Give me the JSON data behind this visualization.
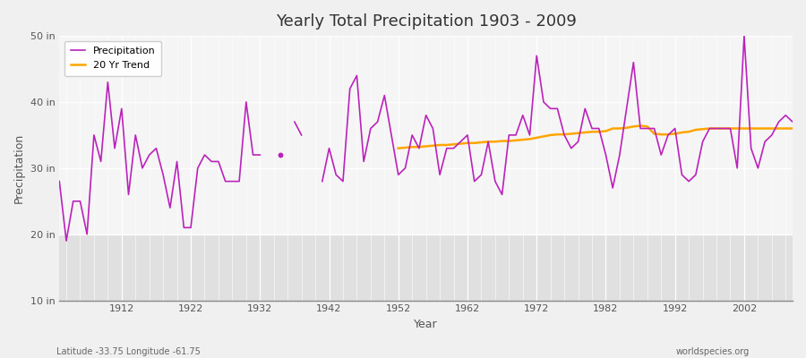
{
  "title": "Yearly Total Precipitation 1903 - 2009",
  "xlabel": "Year",
  "ylabel": "Precipitation",
  "background_color": "#f0f0f0",
  "plot_bg_color": "#e8e8e8",
  "plot_bg_top": "#f0f0f0",
  "precip_color": "#bb22bb",
  "trend_color": "#ffa500",
  "ylim": [
    10,
    50
  ],
  "yticks": [
    10,
    20,
    30,
    40,
    50
  ],
  "ytick_labels": [
    "10 in",
    "20 in",
    "30 in",
    "40 in",
    "50 in"
  ],
  "years": [
    1903,
    1904,
    1905,
    1906,
    1907,
    1908,
    1909,
    1910,
    1911,
    1912,
    1913,
    1914,
    1915,
    1916,
    1917,
    1918,
    1919,
    1920,
    1921,
    1922,
    1923,
    1924,
    1925,
    1926,
    1927,
    1928,
    1929,
    1930,
    1931,
    1932,
    1933,
    1934,
    1935,
    1936,
    1937,
    1938,
    1939,
    1940,
    1941,
    1942,
    1943,
    1944,
    1945,
    1946,
    1947,
    1948,
    1949,
    1950,
    1951,
    1952,
    1953,
    1954,
    1955,
    1956,
    1957,
    1958,
    1959,
    1960,
    1961,
    1962,
    1963,
    1964,
    1965,
    1966,
    1967,
    1968,
    1969,
    1970,
    1971,
    1972,
    1973,
    1974,
    1975,
    1976,
    1977,
    1978,
    1979,
    1980,
    1981,
    1982,
    1983,
    1984,
    1985,
    1986,
    1987,
    1988,
    1989,
    1990,
    1991,
    1992,
    1993,
    1994,
    1995,
    1996,
    1997,
    1998,
    1999,
    2000,
    2001,
    2002,
    2003,
    2004,
    2005,
    2006,
    2007,
    2008,
    2009
  ],
  "precip": [
    28,
    19,
    25,
    25,
    20,
    35,
    31,
    43,
    33,
    39,
    26,
    35,
    30,
    32,
    33,
    29,
    24,
    31,
    21,
    21,
    30,
    32,
    31,
    31,
    28,
    28,
    28,
    40,
    32,
    32,
    null,
    null,
    32,
    null,
    37,
    35,
    null,
    null,
    28,
    33,
    29,
    28,
    42,
    44,
    31,
    36,
    37,
    41,
    35,
    29,
    30,
    35,
    33,
    38,
    36,
    29,
    33,
    33,
    34,
    35,
    28,
    29,
    34,
    28,
    26,
    35,
    35,
    38,
    35,
    47,
    40,
    39,
    39,
    35,
    33,
    34,
    39,
    36,
    36,
    32,
    27,
    32,
    39,
    46,
    36,
    36,
    36,
    32,
    35,
    36,
    29,
    28,
    29,
    34,
    36,
    36,
    36,
    36,
    30,
    50,
    33,
    30,
    34,
    35,
    37,
    38,
    37
  ],
  "trend_years": [
    1952,
    1953,
    1954,
    1955,
    1956,
    1957,
    1958,
    1959,
    1960,
    1961,
    1962,
    1963,
    1964,
    1965,
    1966,
    1967,
    1968,
    1969,
    1970,
    1971,
    1972,
    1973,
    1974,
    1975,
    1976,
    1977,
    1978,
    1979,
    1980,
    1981,
    1982,
    1983,
    1984,
    1985,
    1986,
    1987,
    1988,
    1989,
    1990,
    1991,
    1992,
    1993,
    1994,
    1995,
    1996,
    1997,
    1998,
    1999,
    2000,
    2001,
    2002,
    2003,
    2004,
    2005,
    2006,
    2007,
    2008,
    2009
  ],
  "trend": [
    33.0,
    33.1,
    33.2,
    33.2,
    33.3,
    33.4,
    33.5,
    33.5,
    33.6,
    33.7,
    33.8,
    33.8,
    33.9,
    34.0,
    34.0,
    34.1,
    34.1,
    34.2,
    34.3,
    34.4,
    34.6,
    34.8,
    35.0,
    35.1,
    35.1,
    35.2,
    35.3,
    35.4,
    35.5,
    35.5,
    35.6,
    36.0,
    36.0,
    36.1,
    36.3,
    36.4,
    36.3,
    35.2,
    35.1,
    35.1,
    35.2,
    35.4,
    35.5,
    35.8,
    35.9,
    36.0,
    36.0,
    36.0,
    36.0,
    36.0,
    36.0,
    36.0,
    36.0,
    36.0,
    36.0,
    36.0,
    36.0,
    36.0
  ],
  "footnote_left": "Latitude -33.75 Longitude -61.75",
  "footnote_right": "worldspecies.org",
  "legend_labels": [
    "Precipitation",
    "20 Yr Trend"
  ],
  "xtick_start": 1912,
  "xtick_step": 10,
  "band_split": 20,
  "band_top_color": "#f5f5f5",
  "band_bottom_color": "#e0e0e0"
}
